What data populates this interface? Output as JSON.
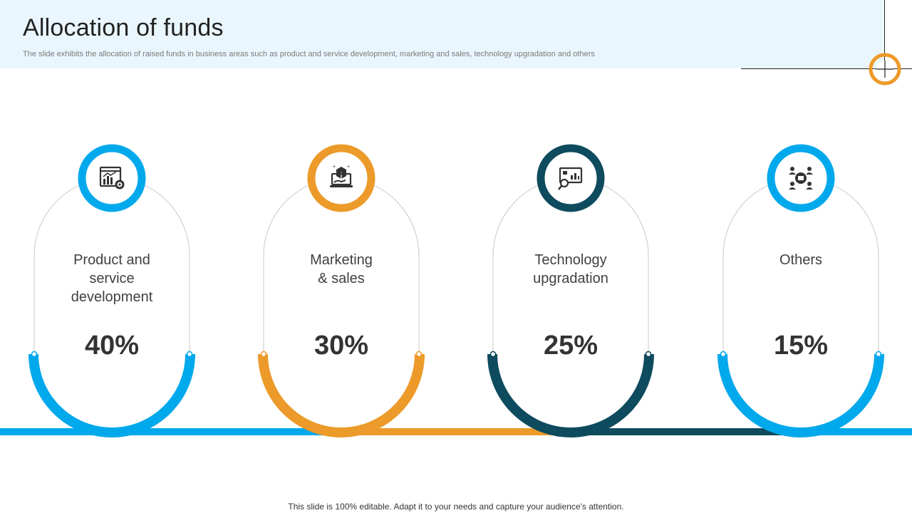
{
  "header": {
    "title": "Allocation of funds",
    "subtitle": "The slide exhibits the allocation of raised funds in business areas such as product and service development, marketing and sales, technology upgradation and others"
  },
  "cards": [
    {
      "label": "Product and\nservice\ndevelopment",
      "value": "40%",
      "color": "#00a8ec",
      "icon": "chart-gear-icon"
    },
    {
      "label": "Marketing\n& sales",
      "value": "30%",
      "color": "#ec9a29",
      "icon": "product-box-hand-icon"
    },
    {
      "label": "Technology\nupgradation",
      "value": "25%",
      "color": "#0e4b5e",
      "icon": "screen-magnifier-icon"
    },
    {
      "label": "Others",
      "value": "15%",
      "color": "#00a8ec",
      "icon": "people-network-icon"
    }
  ],
  "footer": {
    "note": "This slide is 100% editable. Adapt it to your needs and capture your audience's attention."
  }
}
